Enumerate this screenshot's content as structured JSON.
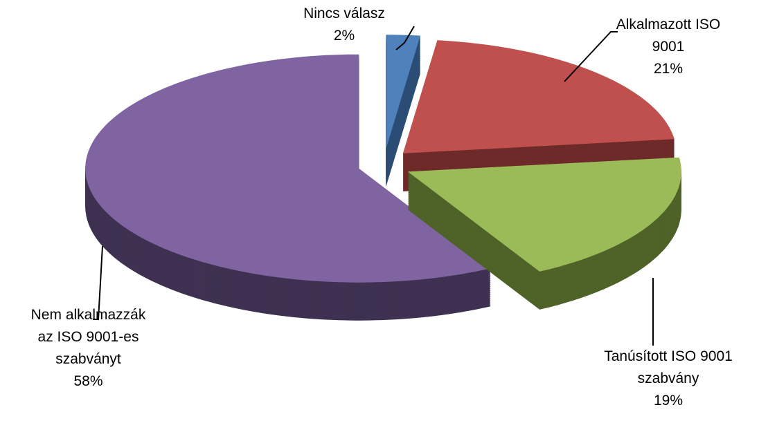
{
  "chart_data": {
    "type": "pie3d",
    "categories": [
      "Nincs válasz",
      "Alkalmazott ISO 9001",
      "Tanúsított ISO 9001 szabvány",
      "Nem alkalmazzák az ISO 9001-es szabványt"
    ],
    "values": [
      2,
      21,
      19,
      58
    ],
    "value_labels": [
      "2%",
      "21%",
      "19%",
      "58%"
    ],
    "colors": [
      "#4f81bd",
      "#c0504d",
      "#9bbb59",
      "#8064a2"
    ],
    "side_colors": [
      "#2c4d75",
      "#6e2a28",
      "#4f6228",
      "#3f3151"
    ]
  }
}
